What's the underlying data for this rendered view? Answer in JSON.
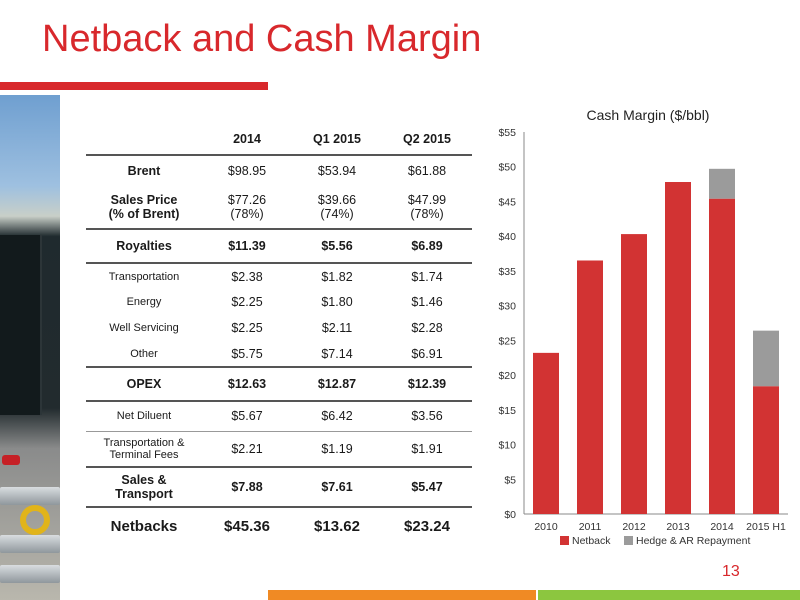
{
  "title": "Netback and Cash Margin",
  "page_number": "13",
  "colors": {
    "accent": "#d8282c",
    "netback": "#d23333",
    "hedge": "#9b9b9b",
    "footer_orange": "#f08a24",
    "footer_green": "#8cc63f"
  },
  "table": {
    "columns": [
      "",
      "2014",
      "Q1 2015",
      "Q2 2015"
    ],
    "rows": [
      {
        "label": "Brent",
        "values": [
          "$98.95",
          "$53.94",
          "$61.88"
        ],
        "style": "bold-label"
      },
      {
        "label": "Sales Price",
        "label2": "(% of Brent)",
        "values": [
          "$77.26",
          "$39.66",
          "$47.99"
        ],
        "values2": [
          "(78%)",
          "(74%)",
          "(78%)"
        ],
        "style": "bold-label"
      },
      {
        "label": "Royalties",
        "values": [
          "$11.39",
          "$5.56",
          "$6.89"
        ],
        "style": "bold"
      },
      {
        "label": "Transportation",
        "values": [
          "$2.38",
          "$1.82",
          "$1.74"
        ],
        "style": "small"
      },
      {
        "label": "Energy",
        "values": [
          "$2.25",
          "$1.80",
          "$1.46"
        ],
        "style": "small"
      },
      {
        "label": "Well Servicing",
        "values": [
          "$2.25",
          "$2.11",
          "$2.28"
        ],
        "style": "small"
      },
      {
        "label": "Other",
        "values": [
          "$5.75",
          "$7.14",
          "$6.91"
        ],
        "style": "small"
      },
      {
        "label": "OPEX",
        "values": [
          "$12.63",
          "$12.87",
          "$12.39"
        ],
        "style": "bold"
      },
      {
        "label": "Net Diluent",
        "values": [
          "$5.67",
          "$6.42",
          "$3.56"
        ],
        "style": "small"
      },
      {
        "label": "Transportation &",
        "label2": "Terminal Fees",
        "values": [
          "$2.21",
          "$1.19",
          "$1.91"
        ],
        "style": "small"
      },
      {
        "label": "Sales &",
        "label2": "Transport",
        "values": [
          "$7.88",
          "$7.61",
          "$5.47"
        ],
        "style": "bold"
      },
      {
        "label": "Netbacks",
        "values": [
          "$45.36",
          "$13.62",
          "$23.24"
        ],
        "style": "big"
      }
    ]
  },
  "chart_data": {
    "type": "bar",
    "stacked": true,
    "title": "Cash Margin ($/bbl)",
    "categories": [
      "2010",
      "2011",
      "2012",
      "2013",
      "2014",
      "2015 H1"
    ],
    "series": [
      {
        "name": "Netback",
        "values": [
          23.2,
          36.5,
          40.3,
          47.8,
          45.4,
          18.4
        ]
      },
      {
        "name": "Hedge & AR Repayment",
        "values": [
          0,
          0,
          0,
          0,
          4.3,
          8.0
        ]
      }
    ],
    "ylim": [
      0,
      55
    ],
    "yticks": [
      "$0",
      "$5",
      "$10",
      "$15",
      "$20",
      "$25",
      "$30",
      "$35",
      "$40",
      "$45",
      "$50",
      "$55"
    ],
    "legend_position": "bottom",
    "grid": false
  }
}
